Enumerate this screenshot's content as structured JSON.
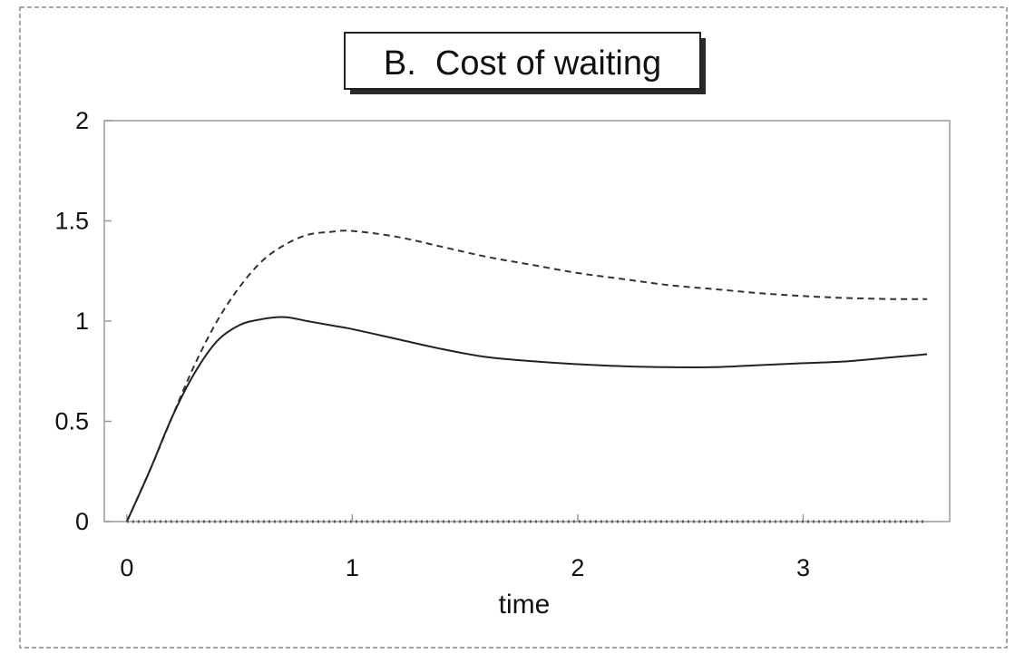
{
  "chart_data": {
    "type": "line",
    "title": "B.  Cost of waiting",
    "xlabel": "time",
    "ylabel": "",
    "xlim": [
      -0.1,
      3.65
    ],
    "ylim": [
      0,
      2
    ],
    "x_ticks": [
      0,
      1,
      2,
      3
    ],
    "y_ticks": [
      0,
      0.5,
      1,
      1.5,
      2
    ],
    "x_tick_labels": [
      "0",
      "1",
      "2",
      "3"
    ],
    "y_tick_labels": [
      "0",
      "0.5",
      "1",
      "1.5",
      "2"
    ],
    "grid": false,
    "legend": "none",
    "series": [
      {
        "style": "dashed",
        "color": "#333333",
        "x": [
          0,
          0.1,
          0.2,
          0.3,
          0.4,
          0.5,
          0.6,
          0.7,
          0.8,
          0.9,
          1.0,
          1.2,
          1.4,
          1.6,
          1.8,
          2.0,
          2.2,
          2.4,
          2.6,
          2.8,
          3.0,
          3.2,
          3.4,
          3.55
        ],
        "y": [
          0,
          0.25,
          0.52,
          0.78,
          1.0,
          1.17,
          1.3,
          1.38,
          1.43,
          1.445,
          1.45,
          1.42,
          1.37,
          1.32,
          1.28,
          1.24,
          1.21,
          1.18,
          1.16,
          1.14,
          1.125,
          1.115,
          1.11,
          1.11
        ]
      },
      {
        "style": "solid",
        "color": "#222222",
        "x": [
          0,
          0.1,
          0.2,
          0.3,
          0.4,
          0.5,
          0.6,
          0.7,
          0.8,
          0.9,
          1.0,
          1.2,
          1.4,
          1.6,
          1.8,
          2.0,
          2.2,
          2.4,
          2.6,
          2.8,
          3.0,
          3.2,
          3.4,
          3.55
        ],
        "y": [
          0,
          0.25,
          0.52,
          0.74,
          0.9,
          0.98,
          1.01,
          1.02,
          1.0,
          0.98,
          0.96,
          0.91,
          0.86,
          0.82,
          0.8,
          0.785,
          0.775,
          0.77,
          0.77,
          0.78,
          0.79,
          0.8,
          0.82,
          0.835
        ]
      },
      {
        "style": "dotted",
        "color": "#555555",
        "x": [
          0,
          0.5,
          1.0,
          1.5,
          2.0,
          2.5,
          3.0,
          3.55
        ],
        "y": [
          0,
          0,
          0,
          0,
          0,
          0,
          0,
          0
        ]
      }
    ]
  }
}
